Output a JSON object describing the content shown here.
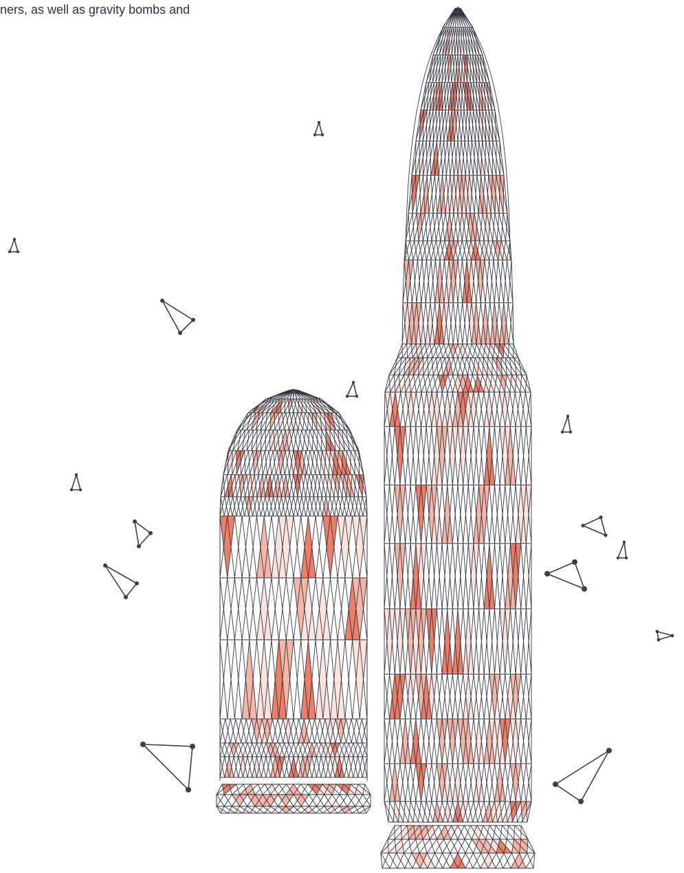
{
  "caption": "ners, as well as gravity bombs and",
  "colors": {
    "line": "#2f3540",
    "fill_light": "#fde3dc",
    "fill_mid": "#f6b6a6",
    "fill_strong": "#ee7f66",
    "background": "#ffffff"
  },
  "illustration": {
    "subject": "two wireframe bullets with triangle fragments",
    "icons": [
      "short-bullet-icon",
      "long-rifle-bullet-icon",
      "triangle-fragment-icon"
    ]
  }
}
